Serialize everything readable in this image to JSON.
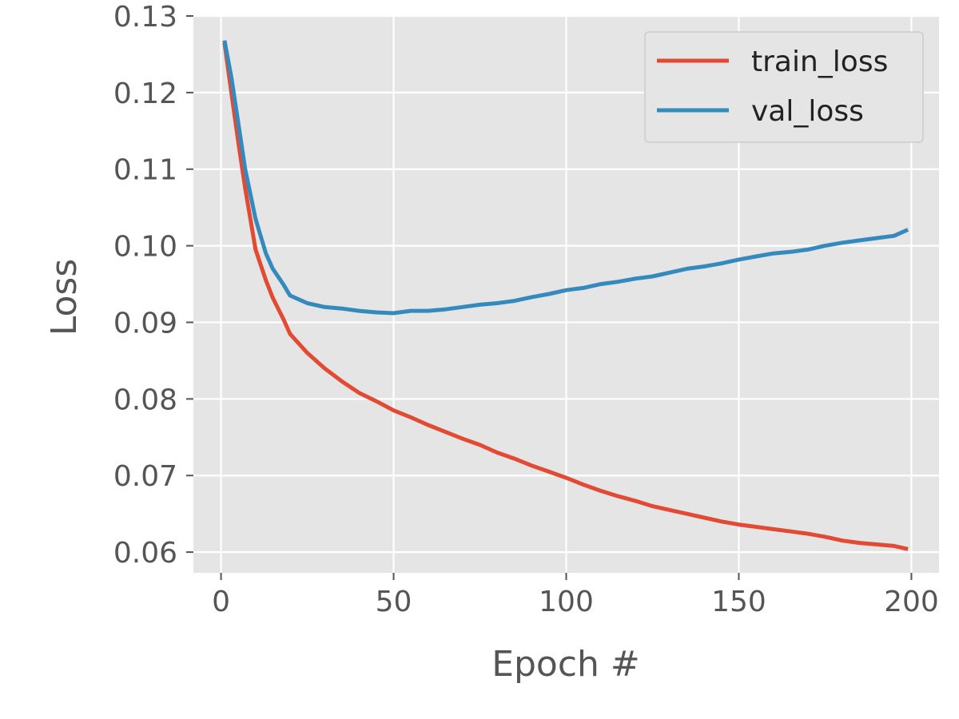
{
  "chart_data": {
    "type": "line",
    "title": "",
    "xlabel": "Epoch #",
    "ylabel": "Loss",
    "xlim": [
      -8,
      208
    ],
    "ylim": [
      0.0573,
      0.13
    ],
    "xticks": [
      0,
      50,
      100,
      150,
      200
    ],
    "yticks": [
      0.06,
      0.07,
      0.08,
      0.09,
      0.1,
      0.11,
      0.12,
      0.13
    ],
    "xtick_labels": [
      "0",
      "50",
      "100",
      "150",
      "200"
    ],
    "ytick_labels": [
      "0.06",
      "0.07",
      "0.08",
      "0.09",
      "0.10",
      "0.11",
      "0.12",
      "0.13"
    ],
    "grid": true,
    "legend": "top-right",
    "colors": {
      "plot_bg": "#e5e5e5",
      "grid": "#ffffff",
      "train": "#e24a33",
      "val": "#348abd"
    },
    "x": [
      1,
      3,
      5,
      7,
      10,
      13,
      15,
      18,
      20,
      25,
      30,
      35,
      40,
      45,
      50,
      55,
      60,
      65,
      70,
      75,
      80,
      85,
      90,
      95,
      100,
      105,
      110,
      115,
      120,
      125,
      130,
      135,
      140,
      145,
      150,
      155,
      160,
      165,
      170,
      175,
      180,
      185,
      190,
      195,
      199
    ],
    "series": [
      {
        "name": "train_loss",
        "values": [
          0.1265,
          0.12,
          0.1135,
          0.1075,
          0.0995,
          0.0955,
          0.0932,
          0.0905,
          0.0885,
          0.086,
          0.084,
          0.0823,
          0.0808,
          0.0797,
          0.0785,
          0.0776,
          0.0766,
          0.0757,
          0.0748,
          0.074,
          0.073,
          0.0722,
          0.0713,
          0.0705,
          0.0697,
          0.0688,
          0.068,
          0.0673,
          0.0667,
          0.066,
          0.0655,
          0.065,
          0.0645,
          0.064,
          0.0636,
          0.0633,
          0.063,
          0.0627,
          0.0624,
          0.062,
          0.0615,
          0.0612,
          0.061,
          0.0608,
          0.0604
        ]
      },
      {
        "name": "val_loss",
        "values": [
          0.1268,
          0.122,
          0.116,
          0.11,
          0.1035,
          0.099,
          0.097,
          0.095,
          0.0935,
          0.0925,
          0.092,
          0.0918,
          0.0915,
          0.0913,
          0.0912,
          0.0915,
          0.0915,
          0.0917,
          0.092,
          0.0923,
          0.0925,
          0.0928,
          0.0933,
          0.0937,
          0.0942,
          0.0945,
          0.095,
          0.0953,
          0.0957,
          0.096,
          0.0965,
          0.097,
          0.0973,
          0.0977,
          0.0982,
          0.0986,
          0.099,
          0.0992,
          0.0995,
          0.1,
          0.1004,
          0.1007,
          0.101,
          0.1013,
          0.1021
        ]
      }
    ]
  }
}
